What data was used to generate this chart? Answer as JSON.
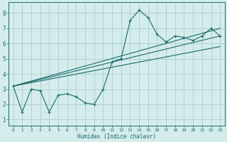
{
  "title": "",
  "xlabel": "Humidex (Indice chaleur)",
  "ylabel": "",
  "bg_color": "#d4eceb",
  "grid_color": "#a8cfce",
  "line_color": "#1a6b6b",
  "x_ticks": [
    0,
    1,
    2,
    3,
    4,
    5,
    6,
    7,
    8,
    9,
    10,
    11,
    12,
    13,
    14,
    15,
    16,
    17,
    18,
    19,
    20,
    21,
    22,
    23
  ],
  "y_ticks": [
    1,
    2,
    3,
    4,
    5,
    6,
    7,
    8
  ],
  "ylim": [
    0.6,
    8.7
  ],
  "xlim": [
    -0.5,
    23.5
  ],
  "main_series_x": [
    0,
    1,
    2,
    3,
    4,
    5,
    6,
    7,
    8,
    9,
    10,
    11,
    12,
    13,
    14,
    15,
    16,
    17,
    18,
    19,
    20,
    21,
    22,
    23
  ],
  "main_series_y": [
    3.2,
    1.5,
    3.0,
    2.9,
    1.5,
    2.6,
    2.7,
    2.5,
    2.1,
    2.0,
    3.0,
    4.8,
    5.0,
    7.5,
    8.2,
    7.7,
    6.6,
    6.1,
    6.5,
    6.4,
    6.2,
    6.5,
    7.0,
    6.5
  ],
  "line1_x": [
    0,
    23
  ],
  "line1_y": [
    3.2,
    7.0
  ],
  "line2_x": [
    0,
    23
  ],
  "line2_y": [
    3.2,
    6.5
  ],
  "line3_x": [
    0,
    23
  ],
  "line3_y": [
    3.2,
    5.8
  ]
}
